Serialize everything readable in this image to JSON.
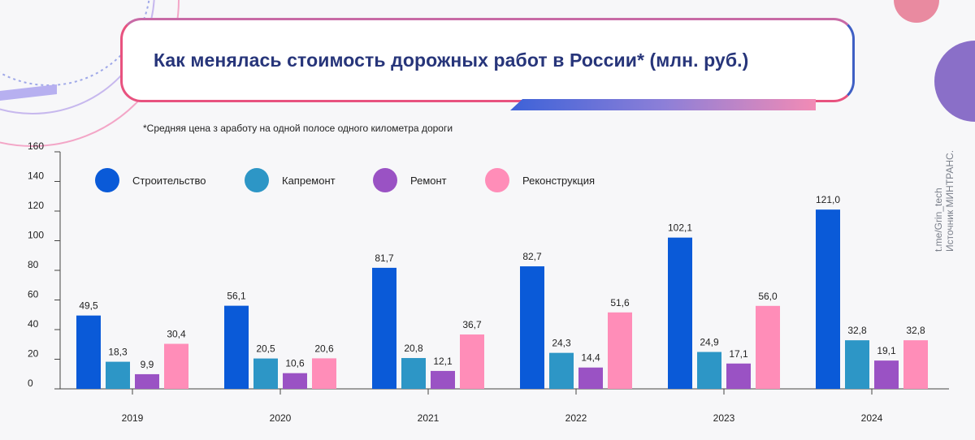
{
  "header": {
    "title": "Как менялась стоимость дорожных работ в России* (млн. руб.)",
    "subtitle": "*Средняя цена з аработу на одной полосе одного километра дороги"
  },
  "source": {
    "line1": "t.me/Grin_tech",
    "line2": "Источник МИНТРАНС."
  },
  "colors": {
    "construction": "#0a5ad8",
    "overhaul": "#2d96c6",
    "repair": "#9a52c4",
    "reconstruction": "#ff8db8",
    "title": "#27357a"
  },
  "chart_data": {
    "type": "bar",
    "title": "Как менялась стоимость дорожных работ в России* (млн. руб.)",
    "xlabel": "",
    "ylabel": "",
    "ylim": [
      0,
      160
    ],
    "yticks": [
      0,
      20,
      40,
      60,
      80,
      100,
      120,
      140,
      160
    ],
    "categories": [
      "2019",
      "2020",
      "2021",
      "2022",
      "2023",
      "2024"
    ],
    "legend_position": "top-left",
    "series": [
      {
        "name": "Строительство",
        "color_key": "construction",
        "values": [
          49.5,
          56.1,
          81.7,
          82.7,
          102.1,
          121.0
        ],
        "labels": [
          "49,5",
          "56,1",
          "81,7",
          "82,7",
          "102,1",
          "121,0"
        ]
      },
      {
        "name": "Капремонт",
        "color_key": "overhaul",
        "values": [
          18.3,
          20.5,
          20.8,
          24.3,
          24.9,
          32.8
        ],
        "labels": [
          "18,3",
          "20,5",
          "20,8",
          "24,3",
          "24,9",
          "32,8"
        ]
      },
      {
        "name": "Ремонт",
        "color_key": "repair",
        "values": [
          9.9,
          10.6,
          12.1,
          14.4,
          17.1,
          19.1
        ],
        "labels": [
          "9,9",
          "10,6",
          "12,1",
          "14,4",
          "17,1",
          "19,1"
        ]
      },
      {
        "name": "Реконструкция",
        "color_key": "reconstruction",
        "values": [
          30.4,
          20.6,
          36.7,
          51.6,
          56.0,
          32.8
        ],
        "labels": [
          "30,4",
          "20,6",
          "36,7",
          "51,6",
          "56,0",
          "32,8"
        ]
      }
    ]
  }
}
